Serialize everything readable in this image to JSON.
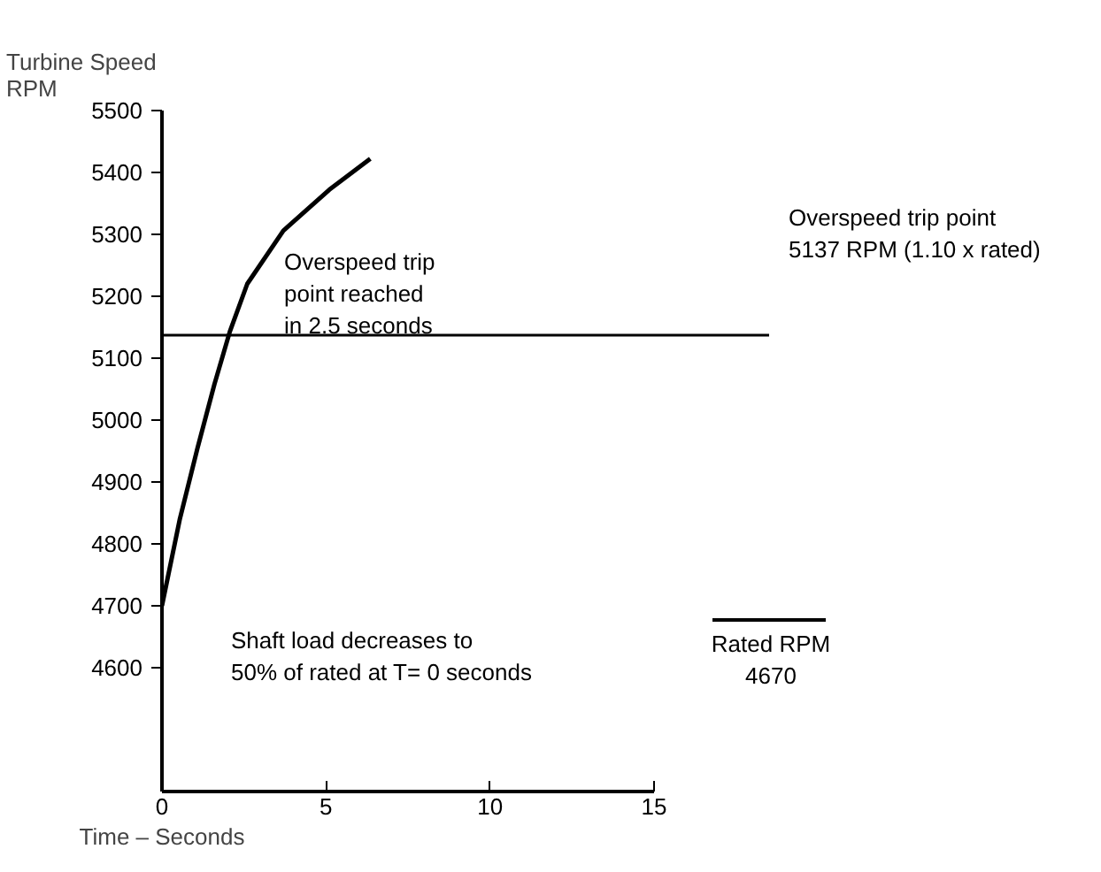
{
  "chart_data": {
    "type": "line",
    "ylabel": "Turbine Speed\nRPM",
    "xlabel": "Time – Seconds",
    "x": [
      0,
      0.54,
      1.08,
      1.6,
      2.07,
      2.6,
      3.7,
      5.1,
      6.35
    ],
    "series": [
      {
        "color": "#000000",
        "values": [
          4700,
          4839,
          4954,
          5058,
          5143,
          5220,
          5306,
          5372,
          5422
        ]
      }
    ],
    "xlim": [
      0,
      15
    ],
    "xticks": [
      0,
      5,
      10,
      15
    ],
    "ylim": [
      4400,
      5500
    ],
    "yticks": [
      4600,
      4700,
      4800,
      4900,
      5000,
      5100,
      5200,
      5300,
      5400,
      5500
    ],
    "ref_lines": [
      {
        "axis": "y",
        "value": 5137,
        "label": "Overspeed trip point\n5137 RPM  (1.10 x rated)",
        "color": "#000000",
        "line_style": "solid"
      }
    ],
    "annotations": [
      "Overspeed trip\npoint reached\nin 2.5 seconds",
      "Shaft load decreases to\n50% of rated at  T= 0 seconds",
      "Rated RPM\n4670"
    ],
    "grid": false,
    "marker": "none",
    "line_style": "solid"
  }
}
